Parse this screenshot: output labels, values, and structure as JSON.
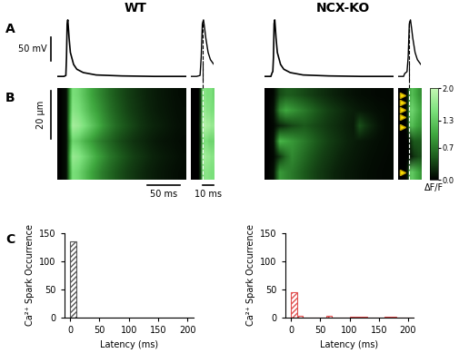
{
  "panel_labels": [
    "A",
    "B",
    "C"
  ],
  "upstroke_line_t": 15,
  "columns": [
    {
      "title": "WT",
      "trace": {
        "xlim": [
          0,
          200
        ],
        "ylim": [
          -90,
          50
        ],
        "t": [
          0,
          10,
          13,
          14,
          15,
          16,
          17,
          18,
          20,
          25,
          30,
          40,
          60,
          100,
          150,
          200
        ],
        "v": [
          -80,
          -80,
          -78,
          -40,
          30,
          38,
          20,
          0,
          -30,
          -55,
          -65,
          -72,
          -77,
          -79,
          -80,
          -80
        ]
      },
      "zoom_trace": {
        "xlim": [
          5,
          25
        ],
        "ylim": [
          -90,
          50
        ],
        "t": [
          5,
          10,
          13,
          14,
          15,
          16,
          17,
          18,
          20,
          22,
          25
        ],
        "v": [
          -80,
          -80,
          -78,
          -40,
          30,
          38,
          20,
          0,
          -30,
          -45,
          -55
        ]
      },
      "linescan": {
        "t_range": [
          0,
          200
        ],
        "x_range": [
          0,
          38
        ],
        "values": [
          [
            0,
            0.1,
            1.5,
            1.4,
            1.2,
            1.0,
            0.85,
            0.7,
            0.6,
            0.5,
            0.42,
            0.35,
            0.3,
            0.25,
            0.2,
            0.17,
            0.14,
            0.12,
            0.1,
            0.08,
            0.07
          ],
          [
            0,
            0.1,
            1.7,
            1.6,
            1.4,
            1.2,
            1.0,
            0.85,
            0.7,
            0.6,
            0.5,
            0.42,
            0.35,
            0.3,
            0.25,
            0.2,
            0.17,
            0.14,
            0.12,
            0.1,
            0.08
          ],
          [
            0,
            0.1,
            1.4,
            1.3,
            1.1,
            0.95,
            0.8,
            0.68,
            0.58,
            0.48,
            0.4,
            0.34,
            0.28,
            0.24,
            0.2,
            0.16,
            0.13,
            0.11,
            0.1,
            0.08,
            0.07
          ],
          [
            0,
            0.1,
            1.8,
            1.7,
            1.5,
            1.3,
            1.1,
            0.9,
            0.75,
            0.62,
            0.52,
            0.44,
            0.37,
            0.3,
            0.25,
            0.21,
            0.18,
            0.15,
            0.12,
            0.1,
            0.09
          ],
          [
            0,
            0.1,
            1.6,
            1.5,
            1.3,
            1.1,
            0.95,
            0.8,
            0.66,
            0.55,
            0.46,
            0.38,
            0.32,
            0.27,
            0.22,
            0.18,
            0.15,
            0.13,
            0.11,
            0.09,
            0.08
          ],
          [
            0,
            0.1,
            1.5,
            1.4,
            1.2,
            1.0,
            0.85,
            0.72,
            0.6,
            0.5,
            0.42,
            0.35,
            0.3,
            0.25,
            0.2,
            0.17,
            0.14,
            0.12,
            0.1,
            0.08,
            0.07
          ]
        ]
      },
      "zoom_linescan": {
        "t_range": [
          5,
          25
        ],
        "x_range": [
          0,
          38
        ],
        "values": [
          [
            0,
            0,
            0,
            0,
            0.3,
            1.4,
            1.6,
            1.6,
            1.55,
            1.5,
            1.5
          ],
          [
            0,
            0,
            0,
            0,
            0.4,
            1.6,
            1.8,
            1.7,
            1.7,
            1.6,
            1.6
          ],
          [
            0,
            0,
            0,
            0,
            0.3,
            1.3,
            1.5,
            1.5,
            1.4,
            1.4,
            1.4
          ],
          [
            0,
            0,
            0,
            0,
            0.4,
            1.7,
            1.9,
            1.8,
            1.8,
            1.7,
            1.7
          ],
          [
            0,
            0,
            0,
            0,
            0.3,
            1.5,
            1.7,
            1.6,
            1.6,
            1.5,
            1.5
          ],
          [
            0,
            0,
            0,
            0,
            0.3,
            1.4,
            1.6,
            1.5,
            1.5,
            1.5,
            1.4
          ]
        ]
      },
      "spark_sites_um": []
    },
    {
      "title": "NCX-KO",
      "trace": {
        "xlim": [
          0,
          200
        ],
        "ylim": [
          -90,
          50
        ],
        "t": [
          0,
          10,
          12,
          13,
          14,
          15,
          16,
          17,
          18,
          20,
          25,
          30,
          40,
          60,
          100,
          150,
          200
        ],
        "v": [
          -80,
          -80,
          -72,
          -70,
          -40,
          30,
          38,
          20,
          0,
          -30,
          -55,
          -65,
          -72,
          -77,
          -79,
          -80,
          -80
        ]
      },
      "zoom_trace": {
        "xlim": [
          5,
          25
        ],
        "ylim": [
          -90,
          50
        ],
        "t": [
          5,
          10,
          11,
          12,
          13,
          14,
          15,
          16,
          17,
          18,
          20,
          22,
          25
        ],
        "v": [
          -80,
          -80,
          -74,
          -72,
          -70,
          -40,
          30,
          38,
          20,
          0,
          -30,
          -45,
          -55
        ]
      },
      "linescan": {
        "t_range": [
          0,
          200
        ],
        "x_range": [
          0,
          38
        ],
        "values": [
          [
            0,
            0.1,
            0.9,
            0.8,
            0.7,
            0.6,
            0.5,
            0.42,
            0.35,
            0.3,
            0.25,
            0.2,
            0.17,
            0.14,
            0.12,
            0.1,
            0.08,
            0.07,
            0.06,
            0.05,
            0.05
          ],
          [
            0,
            0.05,
            0.3,
            0.6,
            0.8,
            0.7,
            0.6,
            0.5,
            0.42,
            0.35,
            0.3,
            0.25,
            0.2,
            0.17,
            0.14,
            0.12,
            0.1,
            0.08,
            0.07,
            0.06,
            0.05
          ],
          [
            0,
            0.1,
            1.1,
            1.0,
            0.9,
            0.8,
            0.7,
            0.6,
            0.5,
            0.42,
            0.35,
            0.3,
            0.25,
            0.2,
            0.17,
            0.14,
            0.12,
            0.1,
            0.08,
            0.07,
            0.06
          ],
          [
            0,
            0.05,
            0.2,
            0.3,
            0.4,
            0.45,
            0.5,
            0.45,
            0.4,
            0.35,
            0.3,
            0.26,
            0.22,
            0.18,
            0.15,
            0.45,
            0.3,
            0.2,
            0.12,
            0.08,
            0.06
          ],
          [
            0,
            0.1,
            0.8,
            1.0,
            0.9,
            0.8,
            0.7,
            0.6,
            0.5,
            0.42,
            0.35,
            0.3,
            0.25,
            0.2,
            0.17,
            0.14,
            0.12,
            0.1,
            0.08,
            0.07,
            0.06
          ],
          [
            0,
            0.05,
            0.4,
            0.5,
            0.5,
            0.45,
            0.4,
            0.35,
            0.3,
            0.26,
            0.22,
            0.18,
            0.15,
            0.12,
            0.1,
            0.08,
            0.07,
            0.06,
            0.05,
            0.05,
            0.04
          ]
        ]
      },
      "zoom_linescan": {
        "t_range": [
          5,
          25
        ],
        "x_range": [
          0,
          38
        ],
        "values": [
          [
            0,
            0,
            0,
            0,
            0.2,
            1.2,
            1.3,
            1.2,
            1.1,
            1.0,
            0.9
          ],
          [
            0,
            0,
            0,
            0,
            0,
            0.1,
            0.2,
            0.3,
            0.35,
            0.4,
            0.4
          ],
          [
            0,
            0,
            0,
            0,
            0,
            0.2,
            0.4,
            0.5,
            0.5,
            0.5,
            0.5
          ],
          [
            0,
            0,
            0,
            0,
            0.2,
            1.1,
            1.2,
            1.1,
            1.0,
            0.95,
            0.9
          ],
          [
            0,
            0,
            0,
            0,
            0.3,
            1.3,
            1.4,
            1.3,
            1.2,
            1.1,
            1.0
          ],
          [
            0,
            0,
            0,
            0,
            0.2,
            1.0,
            1.2,
            1.1,
            1.0,
            0.9,
            0.85
          ]
        ]
      },
      "spark_sites_um": [
        35,
        32,
        29,
        26,
        22,
        3
      ]
    }
  ],
  "scale_bars": {
    "voltage": {
      "value": 50,
      "label": "50 mV"
    },
    "space": {
      "value": 20,
      "label": "20 μm"
    },
    "time": {
      "value": 50,
      "label": "50 ms"
    },
    "zoom_time": {
      "value": 10,
      "label": "10 ms"
    }
  },
  "colorbar": {
    "label": "ΔF/F",
    "range": [
      0,
      2
    ],
    "ticks": [
      0.0,
      0.7,
      1.3,
      2.0
    ]
  },
  "chart_data": [
    {
      "type": "histogram",
      "color": "#555555",
      "xlabel": "Latency (ms)",
      "ylabel": "Ca²⁺ Spark Occurrence",
      "bins": [
        0,
        10,
        20,
        30,
        40,
        50,
        60,
        70,
        80,
        90,
        100,
        110,
        120,
        130,
        140,
        150,
        160,
        170,
        180,
        190,
        200,
        210
      ],
      "counts": [
        135,
        0,
        0,
        0,
        0,
        0,
        0,
        0,
        0,
        0,
        0,
        0,
        0,
        0,
        0,
        0,
        0,
        0,
        0,
        0,
        0
      ],
      "xlim": [
        -10,
        210
      ],
      "ylim": [
        0,
        150
      ],
      "xticks": [
        0,
        50,
        100,
        150,
        200
      ],
      "yticks": [
        0,
        50,
        100,
        150
      ]
    },
    {
      "type": "histogram",
      "color": "#e05050",
      "xlabel": "Latency (ms)",
      "ylabel": "Ca²⁺ Spark Occurrence",
      "bins": [
        0,
        10,
        20,
        30,
        40,
        50,
        60,
        70,
        80,
        90,
        100,
        110,
        120,
        130,
        140,
        150,
        160,
        170,
        180,
        190,
        200,
        210
      ],
      "counts": [
        45,
        4,
        0,
        0,
        0,
        0,
        3,
        0,
        0,
        0,
        1,
        2,
        2,
        0,
        0,
        0,
        1,
        1,
        0,
        0,
        0
      ],
      "xlim": [
        -10,
        210
      ],
      "ylim": [
        0,
        150
      ],
      "xticks": [
        0,
        50,
        100,
        150,
        200
      ],
      "yticks": [
        0,
        50,
        100,
        150
      ]
    }
  ]
}
